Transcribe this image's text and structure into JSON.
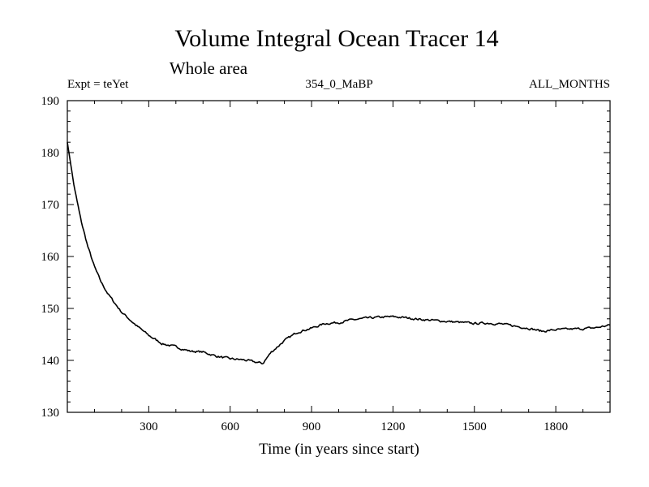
{
  "chart_data": {
    "type": "line",
    "title": "Volume Integral Ocean Tracer 14",
    "subtitle": "Whole area",
    "experiment_label": "Expt = teYet",
    "period_label": "354_0_MaBP",
    "months_label": "ALL_MONTHS",
    "xlabel": "Time (in years since start)",
    "ylabel": "",
    "xlim": [
      0,
      2000
    ],
    "ylim": [
      130,
      190
    ],
    "xticks": [
      300,
      600,
      900,
      1200,
      1500,
      1800
    ],
    "yticks": [
      130,
      140,
      150,
      160,
      170,
      180,
      190
    ],
    "x_minor_step": 100,
    "y_minor_step": 2,
    "grid": false,
    "series": [
      {
        "name": "Volume Integral Ocean Tracer 14",
        "color": "#000000",
        "x": [
          0,
          25,
          50,
          75,
          100,
          125,
          150,
          175,
          200,
          250,
          300,
          350,
          400,
          450,
          500,
          550,
          600,
          650,
          700,
          720,
          750,
          800,
          850,
          900,
          950,
          1000,
          1050,
          1100,
          1150,
          1200,
          1250,
          1300,
          1350,
          1400,
          1450,
          1500,
          1550,
          1600,
          1650,
          1700,
          1750,
          1800,
          1850,
          1900,
          1950,
          2000
        ],
        "values": [
          182,
          173.5,
          167,
          162,
          158,
          155,
          152.8,
          151,
          149.3,
          146.9,
          144.8,
          143.2,
          142.6,
          141.8,
          141.6,
          140.8,
          140.3,
          140.1,
          139.6,
          139.4,
          141.5,
          143.8,
          145.5,
          146.2,
          147.1,
          147.3,
          147.8,
          148.1,
          148.3,
          148.4,
          148.2,
          147.9,
          147.7,
          147.5,
          147.3,
          147.1,
          147.2,
          147.0,
          146.6,
          146.2,
          145.6,
          145.9,
          146.0,
          146.1,
          146.3,
          146.8
        ]
      }
    ]
  }
}
